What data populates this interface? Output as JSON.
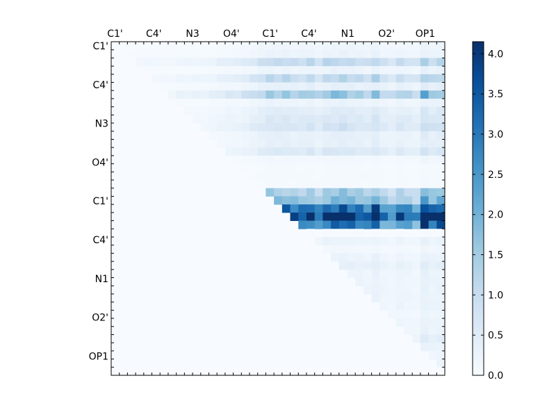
{
  "chart_data": {
    "type": "heatmap",
    "title": "",
    "xlabel": "",
    "ylabel": "",
    "x_tick_labels": [
      "C1'",
      "C4'",
      "N3",
      "O4'",
      "C1'",
      "C4'",
      "N1",
      "O2'",
      "OP1"
    ],
    "y_tick_labels": [
      "C1'",
      "C4'",
      "N3",
      "O4'",
      "C1'",
      "C4'",
      "N1",
      "O2'",
      "OP1"
    ],
    "colorbar": {
      "colormap": "Blues",
      "range": [
        0.0,
        4.15
      ],
      "ticks": [
        "0.0",
        "0.5",
        "1.0",
        "1.5",
        "2.0",
        "2.5",
        "3.0",
        "3.5",
        "4.0"
      ],
      "tick_values": [
        0.0,
        0.5,
        1.0,
        1.5,
        2.0,
        2.5,
        3.0,
        3.5,
        4.0
      ],
      "low_color": "#f7fbff",
      "high_color": "#08306b"
    },
    "grid": false,
    "matrix_size": 41,
    "upper_triangle_only": true,
    "row_profile": [
      0.15,
      0.2,
      0.9,
      0.2,
      0.9,
      0.3,
      1.3,
      0.2,
      0.4,
      0.5,
      0.6,
      0.3,
      0.3,
      0.5,
      0.1,
      0.05,
      0.05,
      0.05,
      1.2,
      1.5,
      2.7,
      3.5,
      2.5,
      0.02,
      0.2,
      0.1,
      0.2,
      0.3,
      0.2,
      0.2,
      0.2,
      0.2,
      0.2,
      0.15,
      0.2,
      0.2,
      0.3,
      0.2,
      0.15,
      0.2,
      0.3
    ],
    "col_profile": [
      0.2,
      0.2,
      0.2,
      0.2,
      0.2,
      0.2,
      0.2,
      0.2,
      0.3,
      0.3,
      0.3,
      0.3,
      0.4,
      0.5,
      0.6,
      0.6,
      0.8,
      1.0,
      1.3,
      1.6,
      1.5,
      1.6,
      1.4,
      1.4,
      1.6,
      1.2,
      1.6,
      1.7,
      1.8,
      1.6,
      1.5,
      1.3,
      1.8,
      1.2,
      1.0,
      1.4,
      1.2,
      1.0,
      2.1,
      1.6,
      1.8
    ]
  }
}
